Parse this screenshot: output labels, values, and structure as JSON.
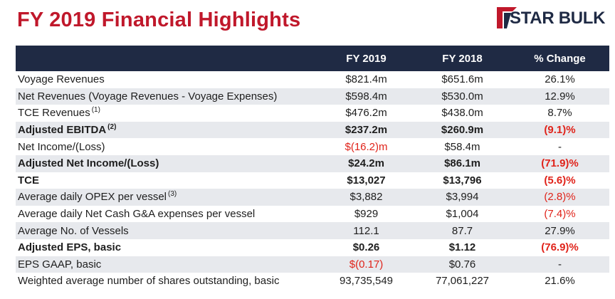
{
  "header": {
    "title": "FY 2019 Financial Highlights",
    "logo_text": "STAR BULK"
  },
  "colors": {
    "title": "#c0182b",
    "header_bg": "#1f2a44",
    "negative": "#e0231a",
    "row_alt": "#e7e9ed"
  },
  "table": {
    "columns": [
      "",
      "FY 2019",
      "FY 2018",
      "% Change"
    ],
    "rows": [
      {
        "label": "Voyage Revenues",
        "sup": "",
        "bold": false,
        "fy2019": "$821.4m",
        "fy2018": "$651.6m",
        "change": "26.1%",
        "neg2019": false,
        "negchange": false
      },
      {
        "label": "Net Revenues (Voyage Revenues - Voyage Expenses)",
        "sup": "",
        "bold": false,
        "fy2019": "$598.4m",
        "fy2018": "$530.0m",
        "change": "12.9%",
        "neg2019": false,
        "negchange": false
      },
      {
        "label": "TCE Revenues",
        "sup": "(1)",
        "bold": false,
        "fy2019": "$476.2m",
        "fy2018": "$438.0m",
        "change": "8.7%",
        "neg2019": false,
        "negchange": false
      },
      {
        "label": "Adjusted EBITDA",
        "sup": "(2)",
        "bold": true,
        "fy2019": "$237.2m",
        "fy2018": "$260.9m",
        "change": "(9.1)%",
        "neg2019": false,
        "negchange": true
      },
      {
        "label": "Net Income/(Loss)",
        "sup": "",
        "bold": false,
        "fy2019": "$(16.2)m",
        "fy2018": "$58.4m",
        "change": "-",
        "neg2019": true,
        "negchange": false
      },
      {
        "label": "Adjusted Net Income/(Loss)",
        "sup": "",
        "bold": true,
        "fy2019": "$24.2m",
        "fy2018": "$86.1m",
        "change": "(71.9)%",
        "neg2019": false,
        "negchange": true
      },
      {
        "label": "TCE",
        "sup": "",
        "bold": true,
        "fy2019": "$13,027",
        "fy2018": "$13,796",
        "change": "(5.6)%",
        "neg2019": false,
        "negchange": true
      },
      {
        "label": "Average daily OPEX per vessel",
        "sup": "(3)",
        "bold": false,
        "fy2019": "$3,882",
        "fy2018": "$3,994",
        "change": "(2.8)%",
        "neg2019": false,
        "negchange": true
      },
      {
        "label": "Average daily Net Cash G&A expenses per vessel",
        "sup": "",
        "bold": false,
        "fy2019": "$929",
        "fy2018": "$1,004",
        "change": "(7.4)%",
        "neg2019": false,
        "negchange": true
      },
      {
        "label": "Average No. of Vessels",
        "sup": "",
        "bold": false,
        "fy2019": "112.1",
        "fy2018": "87.7",
        "change": "27.9%",
        "neg2019": false,
        "negchange": false
      },
      {
        "label": "Adjusted EPS, basic",
        "sup": "",
        "bold": true,
        "fy2019": "$0.26",
        "fy2018": "$1.12",
        "change": "(76.9)%",
        "neg2019": false,
        "negchange": true
      },
      {
        "label": "EPS GAAP, basic",
        "sup": "",
        "bold": false,
        "fy2019": "$(0.17)",
        "fy2018": "$0.76",
        "change": "-",
        "neg2019": true,
        "negchange": false
      },
      {
        "label": "Weighted average number of shares outstanding, basic",
        "sup": "",
        "bold": false,
        "fy2019": "93,735,549",
        "fy2018": "77,061,227",
        "change": "21.6%",
        "neg2019": false,
        "negchange": false
      }
    ]
  }
}
